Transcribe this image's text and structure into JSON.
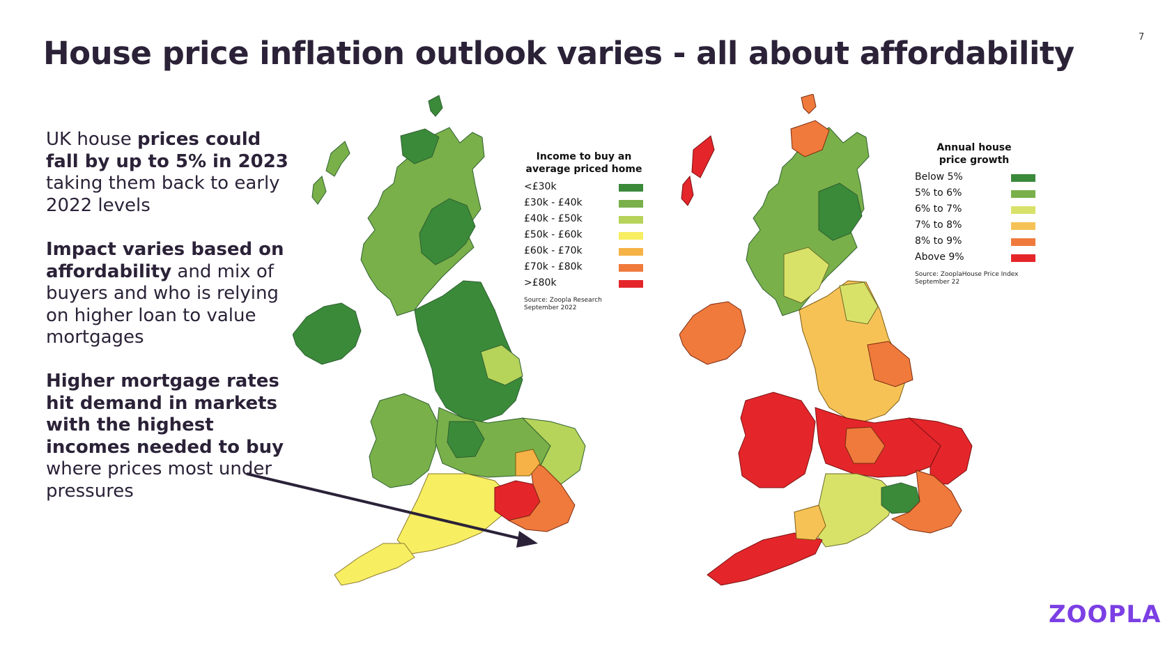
{
  "slide": {
    "page_number": "7",
    "title": "House price inflation outlook varies - all about affordability",
    "logo_text": "ZOOPLA",
    "logo_color": "#7b3fe4"
  },
  "left_text": {
    "p1_a": "UK house ",
    "p1_b": "prices could fall by up to 5% in 2023",
    "p1_c": " taking them back to early 2022 levels",
    "p2_a": "Impact varies based on affordability",
    "p2_b": " and mix of buyers and who is relying on higher loan to value mortgages",
    "p3_a": "Higher mortgage rates hit demand in markets with the highest incomes needed to buy",
    "p3_b": " where prices most under pressures"
  },
  "map_income": {
    "legend_title": "Income to buy an average priced home",
    "items": [
      {
        "label": "<£30k",
        "color": "#3a8a3a"
      },
      {
        "label": "£30k - £40k",
        "color": "#79b04a"
      },
      {
        "label": "£40k - £50k",
        "color": "#b6d35a"
      },
      {
        "label": "£50k - £60k",
        "color": "#f7ee62"
      },
      {
        "label": "£60k - £70k",
        "color": "#f6b246"
      },
      {
        "label": "£70k - £80k",
        "color": "#ef7a3c"
      },
      {
        "label": ">£80k",
        "color": "#e4262b"
      }
    ],
    "source": "Source: Zoopla Research September 2022"
  },
  "map_growth": {
    "legend_title": "Annual house price growth",
    "items": [
      {
        "label": "Below 5%",
        "color": "#3a8a3a"
      },
      {
        "label": "5% to 6%",
        "color": "#79b04a"
      },
      {
        "label": "6% to 7%",
        "color": "#d8e268"
      },
      {
        "label": "7% to 8%",
        "color": "#f6c256"
      },
      {
        "label": "8% to 9%",
        "color": "#ef7a3c"
      },
      {
        "label": "Above 9%",
        "color": "#e4262b"
      }
    ],
    "source": "Source: ZooplaHouse Price Index September 22"
  }
}
